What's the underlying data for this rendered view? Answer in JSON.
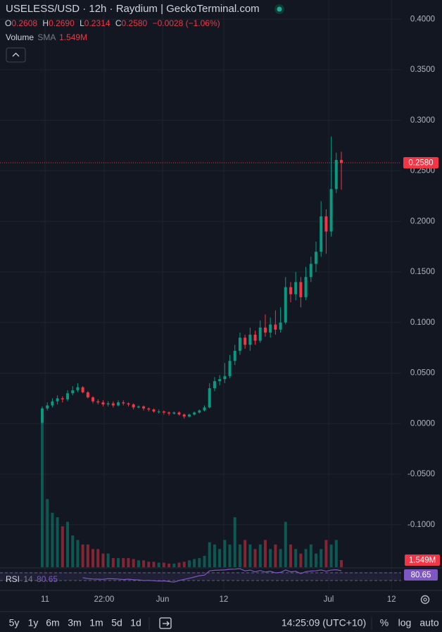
{
  "header": {
    "title": "USELESS/USD · 12h · Raydium | GeckoTerminal.com",
    "ohlc": [
      {
        "label": "O",
        "value": "0.2608"
      },
      {
        "label": "H",
        "value": "0.2690"
      },
      {
        "label": "L",
        "value": "0.2314"
      },
      {
        "label": "C",
        "value": "0.2580"
      }
    ],
    "change": "−0.0028 (−1.06%)"
  },
  "volume_legend": {
    "label": "Volume",
    "sma": "SMA",
    "value": "1.549M"
  },
  "chart_data": {
    "type": "candlestick",
    "up_color": "#089981",
    "down_color": "#f23645",
    "open": [
      0.001,
      0.015,
      0.018,
      0.022,
      0.025,
      0.024,
      0.03,
      0.033,
      0.036,
      0.031,
      0.026,
      0.022,
      0.021,
      0.019,
      0.02,
      0.018,
      0.021,
      0.02,
      0.019,
      0.016,
      0.017,
      0.015,
      0.014,
      0.012,
      0.012,
      0.011,
      0.01,
      0.011,
      0.009,
      0.007,
      0.009,
      0.011,
      0.013,
      0.016,
      0.035,
      0.042,
      0.044,
      0.047,
      0.062,
      0.072,
      0.085,
      0.078,
      0.088,
      0.082,
      0.095,
      0.09,
      0.098,
      0.093,
      0.1,
      0.135,
      0.128,
      0.14,
      0.125,
      0.145,
      0.158,
      0.17,
      0.205,
      0.19,
      0.232,
      0.2608
    ],
    "high": [
      0.017,
      0.021,
      0.025,
      0.028,
      0.027,
      0.033,
      0.037,
      0.04,
      0.037,
      0.032,
      0.027,
      0.024,
      0.023,
      0.022,
      0.022,
      0.023,
      0.023,
      0.021,
      0.02,
      0.018,
      0.018,
      0.016,
      0.015,
      0.014,
      0.013,
      0.012,
      0.012,
      0.012,
      0.01,
      0.01,
      0.012,
      0.014,
      0.018,
      0.04,
      0.046,
      0.048,
      0.06,
      0.068,
      0.078,
      0.09,
      0.088,
      0.095,
      0.092,
      0.102,
      0.108,
      0.105,
      0.112,
      0.115,
      0.145,
      0.14,
      0.15,
      0.145,
      0.155,
      0.165,
      0.18,
      0.22,
      0.212,
      0.284,
      0.268,
      0.269
    ],
    "low": [
      0.0,
      0.013,
      0.016,
      0.019,
      0.021,
      0.022,
      0.028,
      0.031,
      0.03,
      0.025,
      0.02,
      0.019,
      0.017,
      0.017,
      0.016,
      0.017,
      0.018,
      0.017,
      0.014,
      0.015,
      0.013,
      0.012,
      0.011,
      0.01,
      0.009,
      0.008,
      0.009,
      0.008,
      0.005,
      0.006,
      0.008,
      0.01,
      0.012,
      0.015,
      0.032,
      0.038,
      0.04,
      0.045,
      0.058,
      0.068,
      0.074,
      0.072,
      0.078,
      0.08,
      0.086,
      0.085,
      0.088,
      0.09,
      0.098,
      0.12,
      0.122,
      0.115,
      0.122,
      0.14,
      0.15,
      0.165,
      0.168,
      0.185,
      0.228,
      0.2314
    ],
    "close": [
      0.015,
      0.018,
      0.022,
      0.025,
      0.024,
      0.03,
      0.033,
      0.036,
      0.031,
      0.026,
      0.022,
      0.021,
      0.019,
      0.02,
      0.018,
      0.021,
      0.02,
      0.019,
      0.016,
      0.017,
      0.015,
      0.014,
      0.012,
      0.012,
      0.011,
      0.01,
      0.011,
      0.009,
      0.007,
      0.009,
      0.011,
      0.013,
      0.016,
      0.035,
      0.042,
      0.044,
      0.047,
      0.062,
      0.072,
      0.085,
      0.078,
      0.088,
      0.082,
      0.095,
      0.09,
      0.098,
      0.093,
      0.1,
      0.135,
      0.128,
      0.14,
      0.125,
      0.145,
      0.158,
      0.17,
      0.205,
      0.19,
      0.232,
      0.2608,
      0.258
    ],
    "ylim": [
      -0.142,
      0.419
    ],
    "yticks": [
      {
        "value": 0.4,
        "label": "0.4000"
      },
      {
        "value": 0.35,
        "label": "0.3500"
      },
      {
        "value": 0.3,
        "label": "0.3000"
      },
      {
        "value": 0.25,
        "label": "0.2500"
      },
      {
        "value": 0.2,
        "label": "0.2000"
      },
      {
        "value": 0.15,
        "label": "0.1500"
      },
      {
        "value": 0.1,
        "label": "0.1000"
      },
      {
        "value": 0.05,
        "label": "0.0500"
      },
      {
        "value": 0,
        "label": "0.0000"
      },
      {
        "value": -0.05,
        "label": "-0.0500"
      },
      {
        "value": -0.1,
        "label": "-0.1000"
      }
    ],
    "xlim": [
      -8.33,
      70.8
    ],
    "xticks": [
      {
        "value": 0.56,
        "label": "11"
      },
      {
        "value": 12.2,
        "label": "22:00"
      },
      {
        "value": 23.75,
        "label": "Jun"
      },
      {
        "value": 35.8,
        "label": "12"
      },
      {
        "value": 56.5,
        "label": "Jul"
      },
      {
        "value": 68.9,
        "label": "12"
      }
    ],
    "grid": true,
    "last_price": {
      "value": 0.258,
      "label": "0.2580"
    },
    "volume": {
      "values": [
        32,
        15,
        12,
        11,
        9,
        10,
        7,
        6,
        5,
        5,
        4,
        4,
        3,
        3,
        2,
        2,
        2,
        2,
        1.8,
        1.5,
        1.5,
        1.2,
        1.2,
        1.0,
        1.0,
        0.8,
        0.8,
        1.0,
        1.2,
        1.5,
        1.8,
        2.0,
        2.5,
        5.5,
        5,
        4,
        6,
        5,
        11,
        5,
        6,
        5,
        4,
        5,
        6,
        4,
        5,
        4,
        10,
        5,
        4,
        3,
        4,
        5,
        3,
        4,
        6,
        5,
        6,
        1.549
      ],
      "ylim": [
        0,
        125
      ],
      "last_label": "1.549M"
    },
    "rsi": {
      "name": "RSI",
      "length": "14",
      "value_label": "80.65",
      "color": "#7e57c2",
      "ylim": [
        -21,
        99
      ],
      "levels": [
        70,
        30
      ],
      "values": [
        null,
        null,
        null,
        null,
        null,
        null,
        null,
        null,
        45,
        40,
        38,
        37,
        36,
        40,
        39,
        38,
        35,
        37,
        34,
        33,
        30,
        31,
        29,
        27,
        28,
        25,
        22,
        30,
        36,
        42,
        48,
        55,
        58,
        80,
        83,
        84,
        85,
        88,
        89,
        91,
        80,
        84,
        75,
        82,
        74,
        78,
        70,
        72,
        85,
        75,
        78,
        66,
        76,
        79,
        80,
        85,
        78,
        84,
        86,
        80.65
      ]
    }
  },
  "toolbar": {
    "ranges": [
      "5y",
      "1y",
      "6m",
      "3m",
      "1m",
      "5d",
      "1d"
    ],
    "time": "14:25:09 (UTC+10)",
    "percent": "%",
    "log": "log",
    "auto": "auto"
  }
}
